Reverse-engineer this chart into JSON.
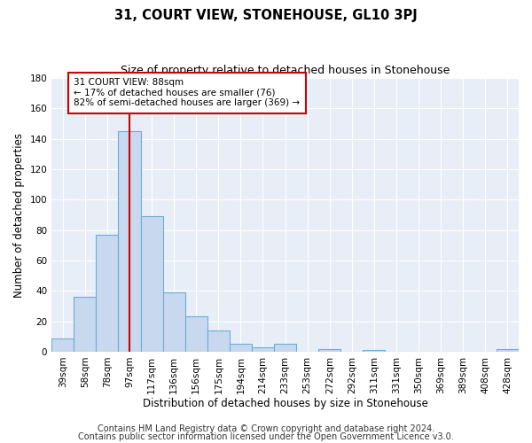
{
  "title": "31, COURT VIEW, STONEHOUSE, GL10 3PJ",
  "subtitle": "Size of property relative to detached houses in Stonehouse",
  "xlabel": "Distribution of detached houses by size in Stonehouse",
  "ylabel": "Number of detached properties",
  "bar_labels": [
    "39sqm",
    "58sqm",
    "78sqm",
    "97sqm",
    "117sqm",
    "136sqm",
    "156sqm",
    "175sqm",
    "194sqm",
    "214sqm",
    "233sqm",
    "253sqm",
    "272sqm",
    "292sqm",
    "311sqm",
    "331sqm",
    "350sqm",
    "369sqm",
    "389sqm",
    "408sqm",
    "428sqm"
  ],
  "bar_values": [
    9,
    36,
    77,
    145,
    89,
    39,
    23,
    14,
    5,
    3,
    5,
    0,
    2,
    0,
    1,
    0,
    0,
    0,
    0,
    0,
    2
  ],
  "bar_color": "#c8d8ee",
  "bar_edge_color": "#6baed6",
  "vline_color": "#cc0000",
  "annotation_text": "31 COURT VIEW: 88sqm\n← 17% of detached houses are smaller (76)\n82% of semi-detached houses are larger (369) →",
  "annotation_box_facecolor": "#ffffff",
  "annotation_box_edgecolor": "#cc0000",
  "ylim": [
    0,
    180
  ],
  "yticks": [
    0,
    20,
    40,
    60,
    80,
    100,
    120,
    140,
    160,
    180
  ],
  "footer1": "Contains HM Land Registry data © Crown copyright and database right 2024.",
  "footer2": "Contains public sector information licensed under the Open Government Licence v3.0.",
  "bg_color": "#ffffff",
  "plot_bg_color": "#e8eef7",
  "title_fontsize": 10.5,
  "subtitle_fontsize": 9,
  "axis_label_fontsize": 8.5,
  "tick_fontsize": 7.5,
  "footer_fontsize": 7,
  "annotation_fontsize": 7.5
}
